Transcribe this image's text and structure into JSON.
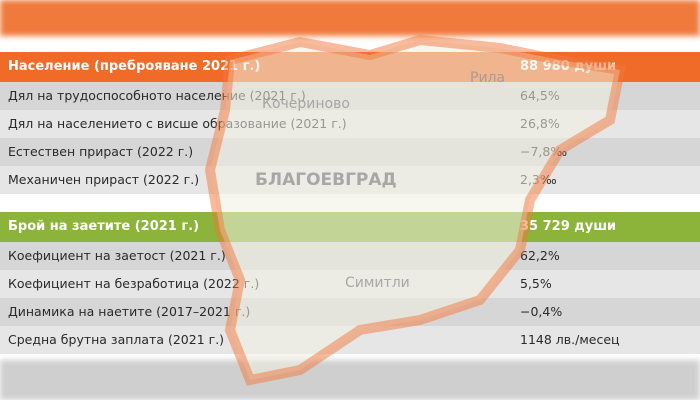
{
  "table": {
    "sections": [
      {
        "header": [
          "Население (преброяване 2021 г.)",
          "88 980 души"
        ],
        "rows": [
          [
            "Дял на трудоспособното население (2021 г.)",
            "64,5%"
          ],
          [
            "Дял на населението с висше образование (2021 г.)",
            "26,8%"
          ],
          [
            "Естествен прираст (2022 г.)",
            "−7,8‰"
          ],
          [
            "Механичен прираст (2022 г.)",
            "2,3‰"
          ]
        ]
      },
      {
        "header": [
          "Брой на заетите (2021 г.)",
          "35 729 души"
        ],
        "rows": [
          [
            "Коефициент на заетост (2021 г.)",
            "62,2%"
          ],
          [
            "Коефициент на безработица (2022 г.)",
            "5,5%"
          ],
          [
            "Динамика на наетите (2017–2021 г.)",
            "−0,4%"
          ],
          [
            "Средна брутна заплата (2021 г.)",
            "1148 лв./месец"
          ]
        ]
      }
    ]
  },
  "map": {
    "labels": [
      "Рила",
      "Кочериново",
      "БЛАГОЕВГРАД",
      "Симитли"
    ]
  }
}
